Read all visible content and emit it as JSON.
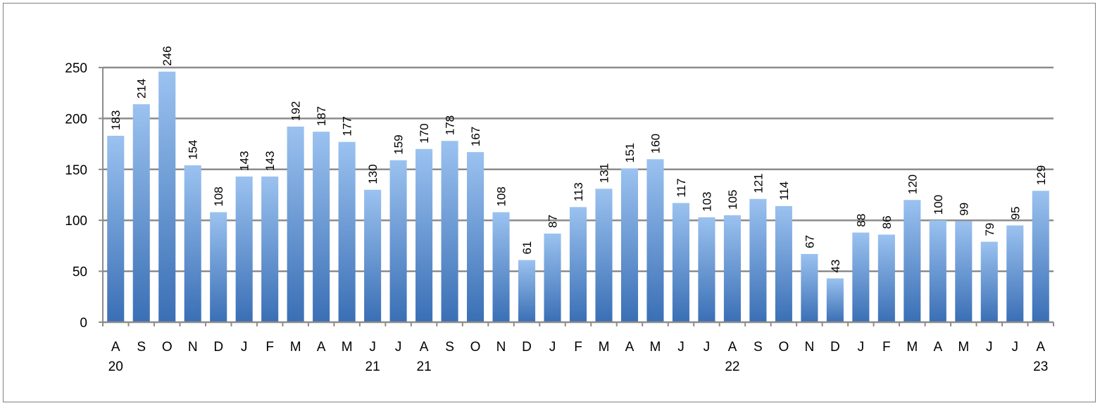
{
  "chart_data": {
    "type": "bar",
    "categories": [
      "A",
      "S",
      "O",
      "N",
      "D",
      "J",
      "F",
      "M",
      "A",
      "M",
      "J",
      "J",
      "A",
      "S",
      "O",
      "N",
      "D",
      "J",
      "F",
      "M",
      "A",
      "M",
      "J",
      "J",
      "A",
      "S",
      "O",
      "N",
      "D",
      "J",
      "F",
      "M",
      "A",
      "M",
      "J",
      "J",
      "A"
    ],
    "year_labels": [
      "20",
      "",
      "",
      "",
      "",
      "",
      "",
      "",
      "",
      "",
      "21",
      "",
      "21",
      "",
      "",
      "",
      "",
      "",
      "",
      "",
      "",
      "",
      "",
      "",
      "22",
      "",
      "",
      "",
      "",
      "",
      "",
      "",
      "",
      "",
      "",
      "",
      "23"
    ],
    "values": [
      183,
      214,
      246,
      154,
      108,
      143,
      143,
      192,
      187,
      177,
      130,
      159,
      170,
      178,
      167,
      108,
      61,
      87,
      113,
      131,
      151,
      160,
      117,
      103,
      105,
      121,
      114,
      67,
      43,
      88,
      86,
      120,
      100,
      99,
      79,
      95,
      129
    ],
    "ylim": [
      0,
      250
    ],
    "yticks": [
      0,
      50,
      100,
      150,
      200,
      250
    ],
    "grid": true,
    "data_labels": true,
    "legend": "none",
    "bar_color_top": "#9bc2f0",
    "bar_color_bottom": "#3a6fb5",
    "title": "",
    "xlabel": "",
    "ylabel": ""
  }
}
